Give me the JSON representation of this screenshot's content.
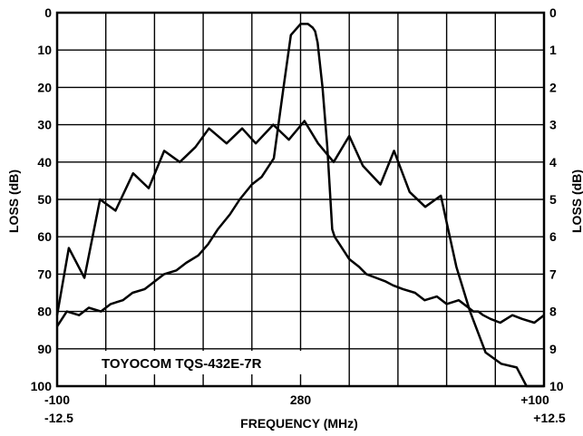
{
  "chart_data": {
    "type": "line",
    "title": "",
    "xlabel": "FREQUENCY (MHz)",
    "ylabel": "LOSS (dB)",
    "ylabel_right": "LOSS (dB)",
    "x_ticks_top_row": [
      "-100",
      "280",
      "+100"
    ],
    "x_ticks_bottom_row": [
      "-12.5",
      "+12.5"
    ],
    "x_wide_span_mhz": [
      -100,
      100
    ],
    "x_narrow_span_mhz": [
      -12.5,
      12.5
    ],
    "center_mhz": 280,
    "y_left_ticks": [
      "0",
      "10",
      "20",
      "30",
      "40",
      "50",
      "60",
      "70",
      "80",
      "90",
      "100"
    ],
    "y_right_ticks": [
      "0",
      "1",
      "2",
      "3",
      "4",
      "5",
      "6",
      "7",
      "8",
      "9",
      "10"
    ],
    "ylim_left_db": [
      0,
      100
    ],
    "ylim_right_db": [
      0,
      10
    ],
    "grid": true,
    "annotation": "TOYOCOM TQS-432E-7R",
    "series": [
      {
        "scale": "wide span, left axis",
        "x": [
          -100,
          -96,
          -91,
          -87,
          -82,
          -78,
          -73,
          -69,
          -64,
          -60,
          -56,
          -51,
          -47,
          -42,
          -38,
          -34,
          -29,
          -25,
          -20,
          -16,
          -11,
          -7,
          -4,
          0,
          2,
          3,
          5,
          6,
          7,
          9,
          11,
          13,
          14,
          16,
          20,
          24,
          27,
          31,
          35,
          38,
          42,
          47,
          51,
          56,
          60,
          65,
          69,
          71,
          73,
          75,
          78,
          82,
          87,
          91,
          96,
          100
        ],
        "y": [
          84,
          80,
          81,
          79,
          80,
          78,
          77,
          75,
          74,
          72,
          70,
          69,
          67,
          65,
          62,
          58,
          54,
          50,
          46,
          44,
          39,
          20,
          6,
          3,
          3,
          3,
          4,
          5,
          8,
          20,
          36,
          58,
          60,
          62,
          66,
          68,
          70,
          71,
          72,
          73,
          74,
          75,
          77,
          76,
          78,
          77,
          79,
          80,
          80,
          81,
          82,
          83,
          81,
          82,
          83,
          81
        ]
      },
      {
        "scale": "narrow span, right axis",
        "x": [
          -12.5,
          -11.9,
          -11.1,
          -10.3,
          -9.5,
          -8.6,
          -7.8,
          -7.0,
          -6.2,
          -5.4,
          -4.7,
          -3.8,
          -3.0,
          -2.3,
          -1.4,
          -0.6,
          0.2,
          0.9,
          1.7,
          2.5,
          3.2,
          4.1,
          4.8,
          5.6,
          6.4,
          7.2,
          8.0,
          8.7,
          9.5,
          10.3,
          11.1,
          11.6,
          12.0,
          12.5
        ],
        "y": [
          8.1,
          6.3,
          7.1,
          5.0,
          5.3,
          4.3,
          4.7,
          3.7,
          4.0,
          3.6,
          3.1,
          3.5,
          3.1,
          3.5,
          3.0,
          3.4,
          2.9,
          3.5,
          4.0,
          3.3,
          4.1,
          4.6,
          3.7,
          4.8,
          5.2,
          4.9,
          6.8,
          8.0,
          9.1,
          9.4,
          9.5,
          10.0,
          10.0,
          10.0
        ]
      }
    ]
  }
}
